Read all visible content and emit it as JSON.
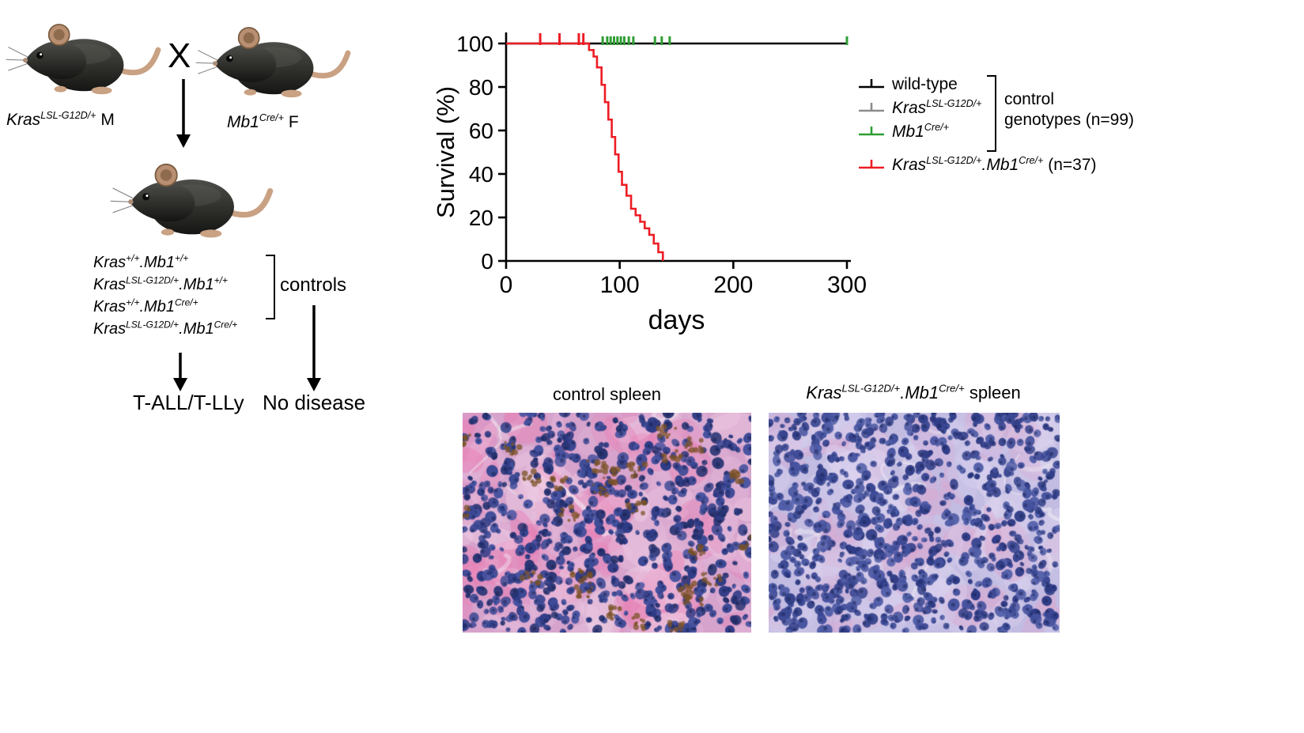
{
  "breeding": {
    "parent_male_label_html": "<i>Kras<sup>LSL-G12D/+</sup></i> M",
    "cross_symbol": "X",
    "parent_female_label_html": "<i>Mb1<sup>Cre/+</sup></i> F",
    "genotypes": [
      "<i>Kras<sup>+/+</sup>.Mb1<sup>+/+</sup></i>",
      "<i>Kras<sup>LSL-G12D/+</sup>.Mb1<sup>+/+</sup></i>",
      "<i>Kras<sup>+/+</sup>.Mb1<sup>Cre/+</sup></i>",
      "<i>Kras<sup>LSL-G12D/+</sup>.Mb1<sup>Cre/+</sup></i>"
    ],
    "controls_label": "controls",
    "outcome_disease": "T-ALL/T-LLy",
    "outcome_no_disease": "No disease"
  },
  "chart_data": {
    "type": "line",
    "subtype": "kaplan-meier",
    "title": "",
    "xlabel": "days",
    "ylabel": "Survival (%)",
    "xlim": [
      0,
      300
    ],
    "ylim": [
      0,
      100
    ],
    "xticks": [
      0,
      100,
      200,
      300
    ],
    "yticks": [
      0,
      20,
      40,
      60,
      80,
      100
    ],
    "grid": false,
    "legend_position": "right",
    "series": [
      {
        "name": "control genotypes (wild-type, Kras LSL-G12D/+, Mb1 Cre/+)",
        "color": "#000000",
        "step": false,
        "points": [
          [
            0,
            100
          ],
          [
            300,
            100
          ]
        ]
      },
      {
        "name": "Kras LSL-G12D/+ . Mb1 Cre/+",
        "color": "#ed1c24",
        "step": true,
        "points": [
          [
            0,
            100
          ],
          [
            73,
            97
          ],
          [
            77,
            94
          ],
          [
            80,
            89
          ],
          [
            84,
            81
          ],
          [
            87,
            73
          ],
          [
            90,
            65
          ],
          [
            93,
            57
          ],
          [
            96,
            49
          ],
          [
            99,
            41
          ],
          [
            102,
            35
          ],
          [
            106,
            30
          ],
          [
            110,
            24
          ],
          [
            114,
            21
          ],
          [
            118,
            18
          ],
          [
            122,
            15
          ],
          [
            126,
            12
          ],
          [
            130,
            8
          ],
          [
            134,
            4
          ],
          [
            138,
            0
          ]
        ]
      }
    ],
    "censor_marks": [
      {
        "day": 30,
        "color": "#ed1c24"
      },
      {
        "day": 47,
        "color": "#ed1c24"
      },
      {
        "day": 64,
        "color": "#ed1c24"
      },
      {
        "day": 68,
        "color": "#ed1c24"
      },
      {
        "day": 85,
        "color": "#2f9e33"
      },
      {
        "day": 89,
        "color": "#2f9e33"
      },
      {
        "day": 92,
        "color": "#2f9e33"
      },
      {
        "day": 95,
        "color": "#2f9e33"
      },
      {
        "day": 98,
        "color": "#2f9e33"
      },
      {
        "day": 101,
        "color": "#2f9e33"
      },
      {
        "day": 104,
        "color": "#2f9e33"
      },
      {
        "day": 108,
        "color": "#2f9e33"
      },
      {
        "day": 112,
        "color": "#2f9e33"
      },
      {
        "day": 131,
        "color": "#2f9e33"
      },
      {
        "day": 137,
        "color": "#2f9e33"
      },
      {
        "day": 144,
        "color": "#2f9e33"
      },
      {
        "day": 300,
        "color": "#2f9e33"
      }
    ],
    "legend": [
      {
        "label_html": "wild-type",
        "color": "#000000"
      },
      {
        "label_html": "<i>Kras<sup>LSL-G12D/+</sup></i>",
        "color": "#8c8c8c"
      },
      {
        "label_html": "<i>Mb1<sup>Cre/+</sup></i>",
        "color": "#2f9e33"
      },
      {
        "label_html": "<i>Kras<sup>LSL-G12D/+</sup>.Mb1<sup>Cre/+</sup></i> (n=37)",
        "color": "#ed1c24"
      }
    ],
    "legend_bracket_label_lines": [
      "control",
      "genotypes (n=99)"
    ]
  },
  "histology": {
    "left": {
      "title": "control spleen",
      "palette": {
        "bg": "#d6a3cc",
        "tissue": "#e3b8da",
        "accent": "#f0d0e6",
        "pink": "#e87fb4",
        "nuclei": [
          "#2f3c86",
          "#3b4894",
          "#273372",
          "#44519f"
        ],
        "chromatin": "#151f4e",
        "brown": "#7a5226"
      }
    },
    "right": {
      "title_html": "<i>Kras<sup>LSL-G12D/+</sup>.Mb1<sup>Cre/+</sup></i> spleen",
      "palette": {
        "bg": "#c2bce2",
        "tissue": "#cfc8ea",
        "accent": "#ded5f0",
        "pink": "#dba7cf",
        "nuclei": [
          "#3a4792",
          "#46539f",
          "#2f3c86",
          "#515ea8"
        ],
        "chromatin": "#1a2456",
        "brown": null
      }
    }
  }
}
